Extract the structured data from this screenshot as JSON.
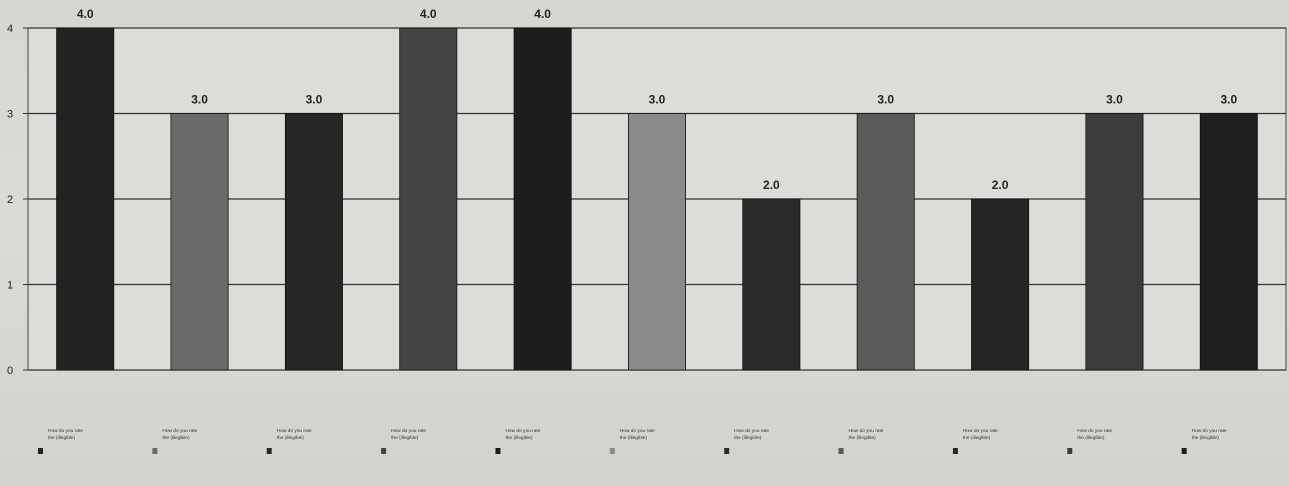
{
  "chart_data": {
    "type": "bar",
    "title": "",
    "xlabel": "",
    "ylabel": "",
    "ylim": [
      0,
      4
    ],
    "yticks": [
      "0",
      "1",
      "2",
      "3",
      "4"
    ],
    "grid": true,
    "values": [
      4.0,
      3.0,
      3.0,
      4.0,
      4.0,
      3.0,
      2.0,
      3.0,
      2.0,
      3.0,
      3.0
    ],
    "data_labels": [
      "4.0",
      "3.0",
      "3.0",
      "4.0",
      "4.0",
      "3.0",
      "2.0",
      "3.0",
      "2.0",
      "3.0",
      "3.0"
    ],
    "categories": [
      "How do you rate the (illegible)",
      "How do you rate the (illegible)",
      "How do you rate the (illegible)",
      "How do you rate the (illegible)",
      "How do you rate the (illegible)",
      "How do you rate the (illegible)",
      "How do you rate the (illegible)",
      "How do you rate the (illegible)",
      "How do you rate the (illegible)",
      "How do you rate the (illegible)",
      "How do you rate the (illegible)"
    ],
    "colors": [
      "#232323",
      "#6a6a6a",
      "#262626",
      "#444444",
      "#1d1d1d",
      "#8a8a8a",
      "#2a2a2a",
      "#5a5a5a",
      "#252525",
      "#3c3c3c",
      "#1f1f1f"
    ]
  }
}
